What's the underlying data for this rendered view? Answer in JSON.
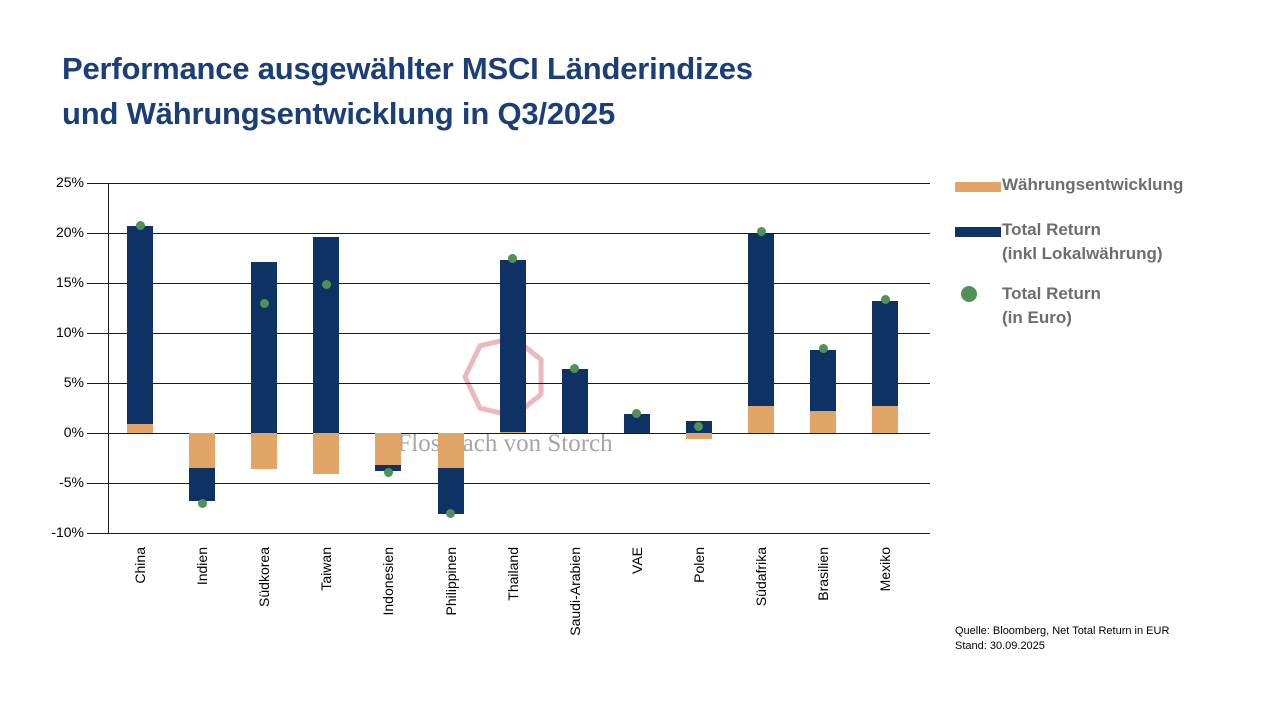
{
  "title": {
    "line1": "Performance ausgewählter MSCI Länderindizes",
    "line2": "und Währungsentwicklung in Q3/2025"
  },
  "watermark_text": "Flossbach von Storch",
  "colors": {
    "title_navy": "#1a3e78",
    "bar_navy": "#0e3263",
    "bar_tan": "#e0a566",
    "dot_green": "#4f9159",
    "legend_text": "#6d6d6d",
    "grid": "#1a1a1a",
    "watermark_rose": "#eab9bd",
    "watermark_gray": "#a6a6a6"
  },
  "legend": {
    "items": [
      {
        "swatch": "tan-bar",
        "label": "Währungsentwicklung",
        "sublabel": ""
      },
      {
        "swatch": "navy-bar",
        "label": "Total Return",
        "sublabel": "(inkl Lokalwährung)"
      },
      {
        "swatch": "green-dot",
        "label": "Total Return",
        "sublabel": "(in Euro)"
      }
    ]
  },
  "source": {
    "line1": "Quelle: Bloomberg, Net Total Return in EUR",
    "line2": "Stand: 30.09.2025"
  },
  "chart_data": {
    "type": "bar",
    "title": "Performance ausgewählter MSCI Länderindizes und Währungsentwicklung in Q3/2025",
    "xlabel": "",
    "ylabel": "",
    "ylim": [
      -10,
      25
    ],
    "yticks": [
      25,
      20,
      15,
      10,
      5,
      0,
      -5,
      -10
    ],
    "ytick_suffix": "%",
    "grid": true,
    "legend_position": "right",
    "categories": [
      "China",
      "Indien",
      "Südkorea",
      "Taiwan",
      "Indonesien",
      "Philippinen",
      "Thailand",
      "Saudi-Arabien",
      "VAE",
      "Polen",
      "Südafrika",
      "Brasilien",
      "Mexiko"
    ],
    "series": [
      {
        "name": "Währungsentwicklung",
        "type": "bar",
        "color": "#e0a566",
        "values": [
          0.9,
          -3.5,
          -3.6,
          -4.1,
          -3.2,
          -3.5,
          0.15,
          0,
          0,
          -0.6,
          2.7,
          2.2,
          2.7
        ]
      },
      {
        "name": "Total Return (inkl Lokalwährung)",
        "type": "bar",
        "color": "#0e3263",
        "segments": [
          [
            0.9,
            20.7
          ],
          [
            -3.5,
            -6.8
          ],
          [
            0,
            17.1
          ],
          [
            0,
            19.6
          ],
          [
            -3.2,
            -3.8
          ],
          [
            -3.5,
            -8.1
          ],
          [
            0.15,
            17.3
          ],
          [
            0,
            6.4
          ],
          [
            0,
            1.9
          ],
          [
            0,
            1.2
          ],
          [
            2.7,
            19.9
          ],
          [
            2.2,
            8.3
          ],
          [
            2.7,
            13.2
          ]
        ]
      },
      {
        "name": "Total Return (in Euro)",
        "type": "point",
        "color": "#4f9159",
        "values": [
          20.8,
          -7.0,
          13.0,
          14.9,
          -3.9,
          -8.0,
          17.5,
          6.5,
          2.0,
          0.7,
          20.2,
          8.5,
          13.4
        ]
      }
    ]
  }
}
